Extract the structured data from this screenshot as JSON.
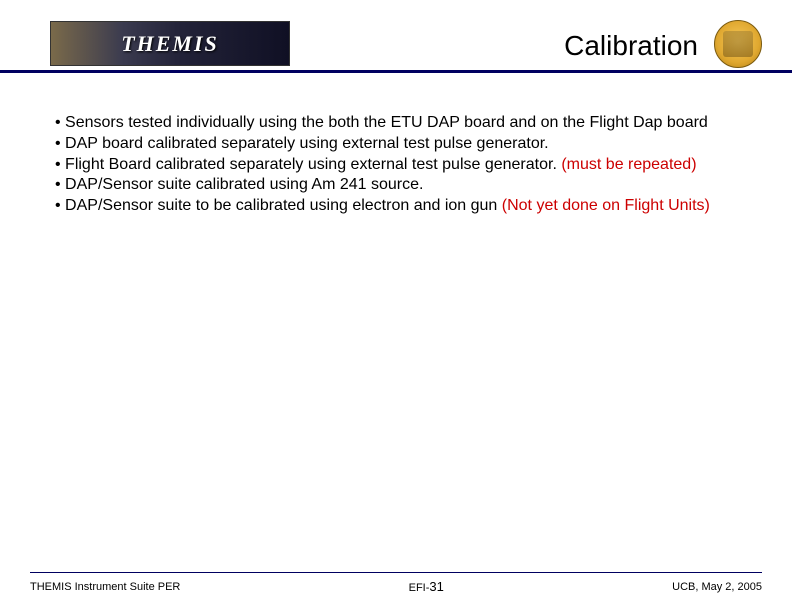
{
  "header": {
    "logo_text": "THEMIS",
    "title": "Calibration"
  },
  "bullets": [
    {
      "prefix": "• ",
      "text": "Sensors tested individually using the both the ETU DAP board and on the Flight Dap board",
      "note": ""
    },
    {
      "prefix": "• ",
      "text": "DAP board calibrated separately using external test pulse generator.",
      "note": ""
    },
    {
      "prefix": "• ",
      "text": "Flight Board calibrated separately using external test pulse generator. ",
      "note": "(must be repeated)"
    },
    {
      "prefix": "• ",
      "text": "DAP/Sensor suite calibrated using Am 241 source.",
      "note": ""
    },
    {
      "prefix": "• ",
      "text": "DAP/Sensor suite to be calibrated using electron and ion gun ",
      "note": "(Not yet done on Flight Units)"
    }
  ],
  "footer": {
    "left": "THEMIS Instrument Suite PER",
    "center_prefix": "EFI-",
    "page_number": "31",
    "right": "UCB, May 2, 2005"
  }
}
